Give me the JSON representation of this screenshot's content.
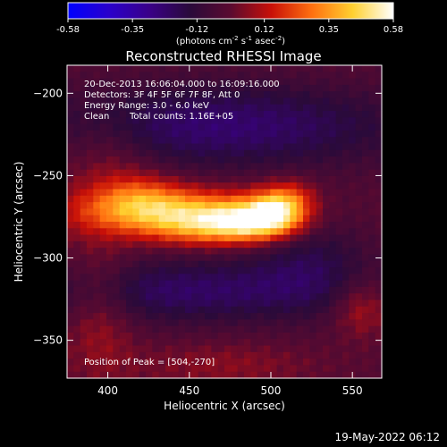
{
  "chart_data": {
    "type": "heatmap",
    "title": "Reconstructed RHESSI Image",
    "xlabel": "Heliocentric X (arcsec)",
    "ylabel": "Heliocentric Y (arcsec)",
    "xlim": [
      375,
      568
    ],
    "ylim": [
      -373,
      -183
    ],
    "xticks": [
      400,
      450,
      500,
      550
    ],
    "yticks": [
      -200,
      -250,
      -300,
      -350
    ],
    "colorbar": {
      "min": -0.58,
      "max": 0.58,
      "ticks": [
        "-0.58",
        "-0.35",
        "-0.12",
        "0.12",
        "0.35",
        "0.58"
      ],
      "label_prefix": "(photons cm",
      "label_sup1": "-2",
      "label_mid": " s",
      "label_sup2": "-1",
      "label_mid2": " asec",
      "label_sup3": "-2",
      "label_suffix": ")",
      "colors": [
        "#0000ff",
        "#2a00cc",
        "#3a0088",
        "#2a0a3a",
        "#5a0a30",
        "#c81008",
        "#ff7010",
        "#ffd030",
        "#ffffff"
      ]
    },
    "annotations": [
      "20-Dec-2013 16:06:04.000 to 16:09:16.000",
      "Detectors: 3F 4F 5F 6F 7F 8F, Att 0",
      "Energy Range: 3.0 - 6.0 keV",
      "Clean",
      "Total counts: 1.16E+05"
    ],
    "peak_label": "Position of Peak = [504,-270]",
    "peak_value": 0.58,
    "blobs": [
      {
        "x": 440,
        "y": -272,
        "sx": 42,
        "sy": 10,
        "a": 0.4
      },
      {
        "x": 460,
        "y": -282,
        "sx": 25,
        "sy": 8,
        "a": 0.22
      },
      {
        "x": 490,
        "y": -278,
        "sx": 18,
        "sy": 8,
        "a": 0.38
      },
      {
        "x": 504,
        "y": -270,
        "sx": 12,
        "sy": 9,
        "a": 0.35
      },
      {
        "x": 420,
        "y": -262,
        "sx": 18,
        "sy": 10,
        "a": 0.15
      },
      {
        "x": 515,
        "y": -262,
        "sx": 10,
        "sy": 8,
        "a": 0.1
      },
      {
        "x": 470,
        "y": -220,
        "sx": 80,
        "sy": 18,
        "a": -0.22
      },
      {
        "x": 450,
        "y": -320,
        "sx": 70,
        "sy": 14,
        "a": -0.2
      },
      {
        "x": 525,
        "y": -300,
        "sx": 25,
        "sy": 20,
        "a": -0.12
      },
      {
        "x": 400,
        "y": -240,
        "sx": 20,
        "sy": 20,
        "a": 0.1
      },
      {
        "x": 395,
        "y": -330,
        "sx": 15,
        "sy": 30,
        "a": 0.12
      },
      {
        "x": 555,
        "y": -330,
        "sx": 12,
        "sy": 12,
        "a": 0.15
      },
      {
        "x": 470,
        "y": -365,
        "sx": 40,
        "sy": 10,
        "a": 0.08
      }
    ]
  },
  "timestamp": "19-May-2022 06:12"
}
